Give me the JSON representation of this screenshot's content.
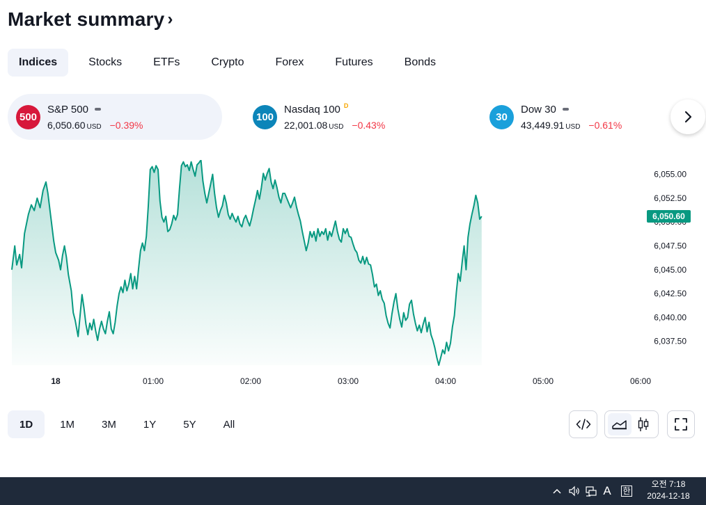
{
  "header": {
    "title": "Market summary",
    "chevron": "›"
  },
  "tabs": [
    {
      "label": "Indices",
      "active": true
    },
    {
      "label": "Stocks",
      "active": false
    },
    {
      "label": "ETFs",
      "active": false
    },
    {
      "label": "Crypto",
      "active": false
    },
    {
      "label": "Forex",
      "active": false
    },
    {
      "label": "Futures",
      "active": false
    },
    {
      "label": "Bonds",
      "active": false
    }
  ],
  "cards": [
    {
      "badge": "500",
      "badge_color": "#d7183b",
      "name": "S&P 500",
      "marker": "dash",
      "value": "6,050.60",
      "currency": "USD",
      "change": "−0.39%",
      "active": true
    },
    {
      "badge": "100",
      "badge_color": "#0c85b9",
      "name": "Nasdaq 100",
      "marker": "D",
      "value": "22,001.08",
      "currency": "USD",
      "change": "−0.43%",
      "active": false
    },
    {
      "badge": "30",
      "badge_color": "#1aa0db",
      "name": "Dow 30",
      "marker": "dash",
      "value": "43,449.91",
      "currency": "USD",
      "change": "−0.61%",
      "active": false
    }
  ],
  "chart_data": {
    "type": "area",
    "title": "",
    "xlabel": "",
    "ylabel": "",
    "x_ticks": [
      "18",
      "01:00",
      "02:00",
      "03:00",
      "04:00",
      "05:00",
      "06:00"
    ],
    "y_ticks": [
      "6,055.00",
      "6,052.50",
      "6,050.00",
      "6,047.50",
      "6,045.00",
      "6,042.50",
      "6,040.00",
      "6,037.50"
    ],
    "ylim": [
      6035.0,
      6056.5
    ],
    "last_price_label": "6,050.60",
    "line_color": "#089981",
    "series": [
      {
        "points": [
          [
            -0.45,
            6045.0
          ],
          [
            -0.42,
            6047.5
          ],
          [
            -0.4,
            6045.5
          ],
          [
            -0.37,
            6046.6
          ],
          [
            -0.35,
            6045.2
          ],
          [
            -0.32,
            6048.8
          ],
          [
            -0.28,
            6050.8
          ],
          [
            -0.25,
            6051.8
          ],
          [
            -0.22,
            6051.2
          ],
          [
            -0.19,
            6052.5
          ],
          [
            -0.16,
            6051.5
          ],
          [
            -0.13,
            6053.3
          ],
          [
            -0.1,
            6054.2
          ],
          [
            -0.08,
            6053.0
          ],
          [
            -0.05,
            6050.5
          ],
          [
            -0.02,
            6048.0
          ],
          [
            0.0,
            6046.8
          ],
          [
            0.03,
            6046.0
          ],
          [
            0.05,
            6045.0
          ],
          [
            0.07,
            6046.5
          ],
          [
            0.09,
            6047.5
          ],
          [
            0.11,
            6046.3
          ],
          [
            0.13,
            6044.5
          ],
          [
            0.16,
            6042.8
          ],
          [
            0.18,
            6040.5
          ],
          [
            0.2,
            6039.7
          ],
          [
            0.23,
            6038.0
          ],
          [
            0.25,
            6040.2
          ],
          [
            0.27,
            6042.4
          ],
          [
            0.29,
            6041.0
          ],
          [
            0.31,
            6039.3
          ],
          [
            0.33,
            6038.2
          ],
          [
            0.35,
            6039.4
          ],
          [
            0.37,
            6038.7
          ],
          [
            0.39,
            6039.8
          ],
          [
            0.41,
            6038.6
          ],
          [
            0.43,
            6037.6
          ],
          [
            0.45,
            6038.8
          ],
          [
            0.47,
            6039.6
          ],
          [
            0.49,
            6038.8
          ],
          [
            0.51,
            6038.3
          ],
          [
            0.53,
            6039.6
          ],
          [
            0.55,
            6040.6
          ],
          [
            0.57,
            6038.8
          ],
          [
            0.59,
            6038.3
          ],
          [
            0.61,
            6039.5
          ],
          [
            0.63,
            6041.2
          ],
          [
            0.65,
            6042.5
          ],
          [
            0.67,
            6043.2
          ],
          [
            0.69,
            6042.6
          ],
          [
            0.71,
            6043.9
          ],
          [
            0.73,
            6042.8
          ],
          [
            0.75,
            6043.5
          ],
          [
            0.77,
            6044.6
          ],
          [
            0.79,
            6043.0
          ],
          [
            0.81,
            6044.3
          ],
          [
            0.83,
            6043.0
          ],
          [
            0.85,
            6045.1
          ],
          [
            0.87,
            6047.0
          ],
          [
            0.89,
            6047.8
          ],
          [
            0.91,
            6047.0
          ],
          [
            0.93,
            6048.5
          ],
          [
            0.95,
            6051.7
          ],
          [
            0.97,
            6055.5
          ],
          [
            0.99,
            6055.8
          ],
          [
            1.01,
            6055.2
          ],
          [
            1.03,
            6055.9
          ],
          [
            1.05,
            6055.5
          ],
          [
            1.07,
            6052.2
          ],
          [
            1.09,
            6050.5
          ],
          [
            1.11,
            6050.0
          ],
          [
            1.13,
            6050.6
          ],
          [
            1.15,
            6049.0
          ],
          [
            1.17,
            6049.2
          ],
          [
            1.19,
            6049.8
          ],
          [
            1.21,
            6050.7
          ],
          [
            1.23,
            6050.2
          ],
          [
            1.25,
            6050.8
          ],
          [
            1.27,
            6053.5
          ],
          [
            1.29,
            6055.9
          ],
          [
            1.31,
            6056.3
          ],
          [
            1.33,
            6055.8
          ],
          [
            1.35,
            6056.0
          ],
          [
            1.37,
            6055.4
          ],
          [
            1.39,
            6056.3
          ],
          [
            1.41,
            6055.5
          ],
          [
            1.43,
            6054.8
          ],
          [
            1.45,
            6056.0
          ],
          [
            1.47,
            6056.2
          ],
          [
            1.49,
            6056.5
          ],
          [
            1.51,
            6054.3
          ],
          [
            1.53,
            6053.0
          ],
          [
            1.55,
            6052.0
          ],
          [
            1.57,
            6053.0
          ],
          [
            1.59,
            6054.0
          ],
          [
            1.61,
            6055.0
          ],
          [
            1.63,
            6053.0
          ],
          [
            1.65,
            6051.5
          ],
          [
            1.67,
            6050.5
          ],
          [
            1.69,
            6051.2
          ],
          [
            1.71,
            6051.7
          ],
          [
            1.73,
            6052.8
          ],
          [
            1.75,
            6052.0
          ],
          [
            1.77,
            6050.8
          ],
          [
            1.79,
            6050.3
          ],
          [
            1.81,
            6050.9
          ],
          [
            1.83,
            6050.4
          ],
          [
            1.85,
            6050.0
          ],
          [
            1.87,
            6050.6
          ],
          [
            1.89,
            6049.8
          ],
          [
            1.91,
            6049.5
          ],
          [
            1.93,
            6050.3
          ],
          [
            1.95,
            6050.7
          ],
          [
            1.97,
            6050.1
          ],
          [
            1.99,
            6049.6
          ],
          [
            2.01,
            6050.4
          ],
          [
            2.03,
            6051.4
          ],
          [
            2.05,
            6052.3
          ],
          [
            2.07,
            6053.3
          ],
          [
            2.09,
            6052.4
          ],
          [
            2.11,
            6053.6
          ],
          [
            2.13,
            6055.1
          ],
          [
            2.15,
            6054.4
          ],
          [
            2.17,
            6055.1
          ],
          [
            2.19,
            6055.6
          ],
          [
            2.21,
            6054.2
          ],
          [
            2.23,
            6053.5
          ],
          [
            2.25,
            6054.4
          ],
          [
            2.27,
            6053.6
          ],
          [
            2.29,
            6052.6
          ],
          [
            2.31,
            6052.0
          ],
          [
            2.33,
            6053.0
          ],
          [
            2.35,
            6053.0
          ],
          [
            2.37,
            6052.5
          ],
          [
            2.39,
            6052.0
          ],
          [
            2.41,
            6051.5
          ],
          [
            2.43,
            6052.0
          ],
          [
            2.45,
            6052.6
          ],
          [
            2.47,
            6051.6
          ],
          [
            2.49,
            6050.8
          ],
          [
            2.51,
            6050.1
          ],
          [
            2.53,
            6049.0
          ],
          [
            2.55,
            6048.0
          ],
          [
            2.57,
            6047.0
          ],
          [
            2.59,
            6047.8
          ],
          [
            2.61,
            6049.0
          ],
          [
            2.63,
            6048.4
          ],
          [
            2.65,
            6049.0
          ],
          [
            2.67,
            6048.0
          ],
          [
            2.69,
            6049.3
          ],
          [
            2.71,
            6048.5
          ],
          [
            2.73,
            6049.0
          ],
          [
            2.75,
            6048.7
          ],
          [
            2.77,
            6049.3
          ],
          [
            2.79,
            6048.1
          ],
          [
            2.81,
            6049.0
          ],
          [
            2.83,
            6048.5
          ],
          [
            2.85,
            6049.3
          ],
          [
            2.87,
            6050.1
          ],
          [
            2.89,
            6049.0
          ],
          [
            2.91,
            6048.2
          ],
          [
            2.93,
            6047.9
          ],
          [
            2.95,
            6049.3
          ],
          [
            2.97,
            6048.8
          ],
          [
            2.99,
            6049.3
          ],
          [
            3.01,
            6048.5
          ],
          [
            3.03,
            6048.4
          ],
          [
            3.05,
            6047.7
          ],
          [
            3.07,
            6047.1
          ],
          [
            3.09,
            6046.8
          ],
          [
            3.11,
            6046.0
          ],
          [
            3.13,
            6045.7
          ],
          [
            3.15,
            6046.4
          ],
          [
            3.17,
            6045.6
          ],
          [
            3.19,
            6046.3
          ],
          [
            3.21,
            6045.6
          ],
          [
            3.23,
            6045.5
          ],
          [
            3.25,
            6044.5
          ],
          [
            3.27,
            6043.2
          ],
          [
            3.29,
            6043.5
          ],
          [
            3.31,
            6042.3
          ],
          [
            3.33,
            6042.8
          ],
          [
            3.35,
            6041.9
          ],
          [
            3.37,
            6041.5
          ],
          [
            3.39,
            6040.2
          ],
          [
            3.41,
            6039.4
          ],
          [
            3.43,
            6038.9
          ],
          [
            3.45,
            6040.4
          ],
          [
            3.47,
            6041.6
          ],
          [
            3.49,
            6042.5
          ],
          [
            3.51,
            6040.9
          ],
          [
            3.53,
            6039.8
          ],
          [
            3.55,
            6039.0
          ],
          [
            3.57,
            6040.5
          ],
          [
            3.59,
            6039.7
          ],
          [
            3.61,
            6040.0
          ],
          [
            3.63,
            6041.4
          ],
          [
            3.65,
            6041.8
          ],
          [
            3.67,
            6040.4
          ],
          [
            3.69,
            6039.4
          ],
          [
            3.71,
            6038.6
          ],
          [
            3.73,
            6039.2
          ],
          [
            3.75,
            6038.4
          ],
          [
            3.77,
            6039.3
          ],
          [
            3.79,
            6040.0
          ],
          [
            3.81,
            6038.5
          ],
          [
            3.83,
            6039.5
          ],
          [
            3.85,
            6038.2
          ],
          [
            3.87,
            6037.6
          ],
          [
            3.89,
            6036.8
          ],
          [
            3.91,
            6035.8
          ],
          [
            3.93,
            6035.0
          ],
          [
            3.95,
            6035.8
          ],
          [
            3.97,
            6036.6
          ],
          [
            3.99,
            6036.2
          ],
          [
            4.01,
            6037.4
          ],
          [
            4.03,
            6036.5
          ],
          [
            4.05,
            6037.3
          ],
          [
            4.07,
            6039.0
          ],
          [
            4.09,
            6040.2
          ],
          [
            4.11,
            6042.6
          ],
          [
            4.13,
            6044.6
          ],
          [
            4.15,
            6043.8
          ],
          [
            4.17,
            6045.8
          ],
          [
            4.19,
            6047.5
          ],
          [
            4.21,
            6045.0
          ],
          [
            4.23,
            6048.4
          ],
          [
            4.25,
            6049.8
          ],
          [
            4.27,
            6050.8
          ],
          [
            4.29,
            6051.7
          ],
          [
            4.31,
            6052.8
          ],
          [
            4.33,
            6052.0
          ],
          [
            4.35,
            6050.3
          ],
          [
            4.37,
            6050.6
          ]
        ]
      }
    ]
  },
  "ranges": [
    {
      "label": "1D",
      "active": true
    },
    {
      "label": "1M",
      "active": false
    },
    {
      "label": "3M",
      "active": false
    },
    {
      "label": "1Y",
      "active": false
    },
    {
      "label": "5Y",
      "active": false
    },
    {
      "label": "All",
      "active": false
    }
  ],
  "tools": {
    "embed_icon": "code-icon",
    "area_icon": "area-chart-icon",
    "candle_icon": "candlestick-icon",
    "fullscreen_icon": "fullscreen-icon"
  },
  "taskbar": {
    "chevron": "^",
    "ime_letter": "A",
    "ime_mode": "한",
    "time": "오전 7:18",
    "date": "2024-12-18"
  }
}
